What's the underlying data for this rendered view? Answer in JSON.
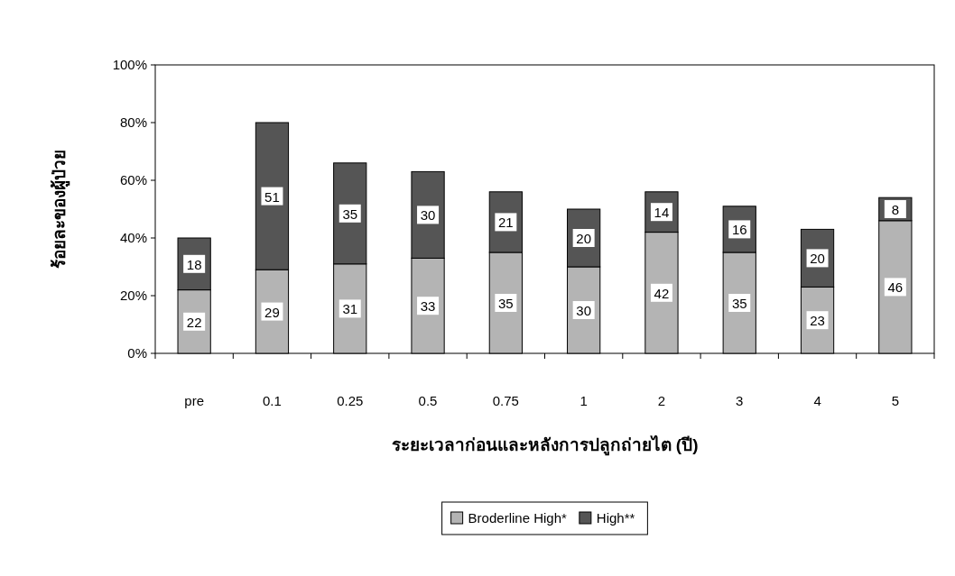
{
  "chart_data": {
    "type": "bar",
    "stacked": true,
    "categories": [
      "pre",
      "0.1",
      "0.25",
      "0.5",
      "0.75",
      "1",
      "2",
      "3",
      "4",
      "5"
    ],
    "series": [
      {
        "name": "Broderline High*",
        "color": "#b4b4b4",
        "values": [
          22,
          29,
          31,
          33,
          35,
          30,
          42,
          35,
          23,
          46
        ]
      },
      {
        "name": "High**",
        "color": "#555555",
        "values": [
          18,
          51,
          35,
          30,
          21,
          20,
          14,
          16,
          20,
          8
        ]
      }
    ],
    "ylim": [
      0,
      100
    ],
    "yticks": [
      {
        "value": 0,
        "label": "0%"
      },
      {
        "value": 20,
        "label": "20%"
      },
      {
        "value": 40,
        "label": "40%"
      },
      {
        "value": 60,
        "label": "60%"
      },
      {
        "value": 80,
        "label": "80%"
      },
      {
        "value": 100,
        "label": "100%"
      }
    ],
    "xlabel": "ระยะเวลาก่อนและหลังการปลูกถ่ายไต (ปี)",
    "ylabel": "ร้อยละของผู้ป่วย",
    "data_labels": true,
    "legend": "bottom",
    "grid": false
  }
}
